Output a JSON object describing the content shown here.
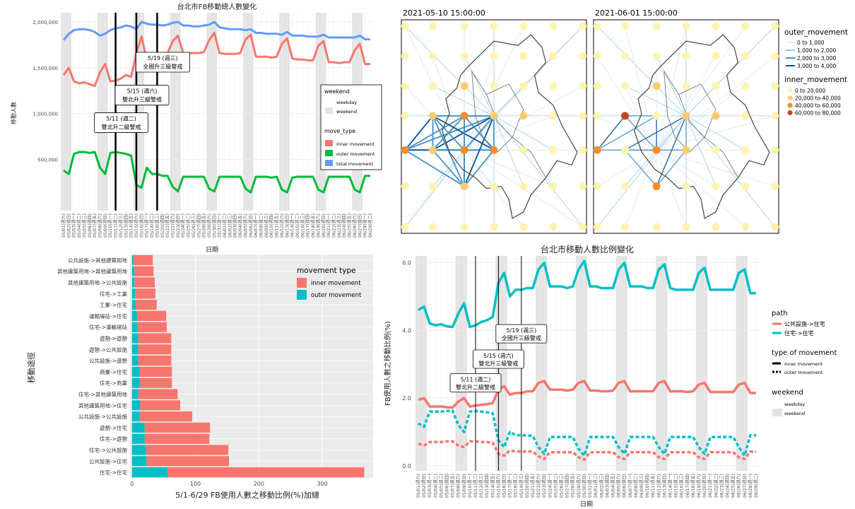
{
  "chart_data": [
    {
      "id": "p1",
      "type": "line",
      "title": "台北市FB移動總人數變化",
      "xlabel": "日期",
      "ylabel": "移動人數",
      "yticks": [
        "2,000,000",
        "1,500,000",
        "1,000,000",
        "500,000"
      ],
      "ytick_values": [
        2000000,
        1500000,
        1000000,
        500000
      ],
      "ylim": [
        -60000,
        2100000
      ],
      "date_labels": [
        "05/01(週六)",
        "05/02(週日)",
        "05/03(週一)",
        "05/04(週二)",
        "05/05(週三)",
        "05/06(週四)",
        "05/07(週五)",
        "05/08(週六)",
        "05/09(週日)",
        "05/10(週一)",
        "05/11(週二)",
        "05/12(週三)",
        "05/13(週四)",
        "05/14(週五)",
        "05/15(週六)",
        "05/16(週日)",
        "05/17(週一)",
        "05/18(週二)",
        "05/19(週三)",
        "05/20(週四)",
        "05/21(週五)",
        "05/22(週六)",
        "05/23(週日)",
        "05/24(週一)",
        "05/25(週二)",
        "05/26(週三)",
        "05/27(週四)",
        "05/28(週五)",
        "05/29(週六)",
        "05/30(週日)",
        "05/31(週一)",
        "06/01(週二)",
        "06/02(週三)",
        "06/03(週四)",
        "06/04(週五)",
        "06/05(週六)",
        "06/06(週日)",
        "06/07(週一)",
        "06/08(週二)",
        "06/09(週三)",
        "06/10(週四)",
        "06/11(週五)",
        "06/12(週六)",
        "06/13(週日)",
        "06/14(週一)",
        "06/15(週二)",
        "06/16(週三)",
        "06/17(週四)",
        "06/18(週五)",
        "06/19(週六)",
        "06/20(週日)",
        "06/21(週一)",
        "06/22(週二)",
        "06/23(週三)",
        "06/24(週四)",
        "06/25(週五)",
        "06/26(週六)",
        "06/27(週日)",
        "06/28(週一)",
        "06/29(週二)"
      ],
      "weekend_index": [
        0,
        1,
        7,
        8,
        14,
        15,
        21,
        22,
        28,
        29,
        35,
        36,
        42,
        43,
        49,
        50,
        56,
        57
      ],
      "event_lines": [
        10,
        14,
        18
      ],
      "annotations": [
        {
          "at": 10,
          "line1": "5/11 (週二)",
          "line2": "雙北升二級警戒",
          "y": 900000
        },
        {
          "at": 14,
          "line1": "5/15 (週六)",
          "line2": "雙北升三級警戒",
          "y": 1200000
        },
        {
          "at": 18,
          "line1": "5/19 (週三)",
          "line2": "全國升三級警戒",
          "y": 1560000
        }
      ],
      "legend": {
        "title_weekend": "weekend",
        "weekend_items": [
          "weekday",
          "weekend"
        ],
        "title_type": "move_type",
        "type_items": [
          "inner movement",
          "outer movement",
          "total movement"
        ]
      },
      "series": [
        {
          "name": "inner movement",
          "color": "#F8766D",
          "values": [
            1420000,
            1500000,
            1350000,
            1330000,
            1340000,
            1320000,
            1300000,
            1450000,
            1540000,
            1350000,
            1360000,
            1380000,
            1420000,
            1400000,
            1660000,
            1840000,
            1580000,
            1650000,
            1650000,
            1660000,
            1660000,
            1790000,
            1850000,
            1660000,
            1660000,
            1660000,
            1660000,
            1670000,
            1800000,
            1880000,
            1660000,
            1650000,
            1650000,
            1650000,
            1660000,
            1810000,
            1860000,
            1620000,
            1620000,
            1620000,
            1610000,
            1620000,
            1760000,
            1820000,
            1600000,
            1590000,
            1590000,
            1580000,
            1580000,
            1740000,
            1790000,
            1560000,
            1560000,
            1550000,
            1560000,
            1560000,
            1690000,
            1760000,
            1540000,
            1540000
          ]
        },
        {
          "name": "outer movement",
          "color": "#00BA38",
          "values": [
            380000,
            340000,
            560000,
            580000,
            580000,
            570000,
            580000,
            410000,
            340000,
            570000,
            580000,
            570000,
            560000,
            540000,
            220000,
            190000,
            410000,
            340000,
            340000,
            320000,
            320000,
            200000,
            150000,
            310000,
            310000,
            310000,
            310000,
            310000,
            180000,
            150000,
            310000,
            310000,
            310000,
            310000,
            310000,
            180000,
            140000,
            310000,
            310000,
            310000,
            300000,
            310000,
            170000,
            140000,
            300000,
            310000,
            310000,
            310000,
            310000,
            170000,
            140000,
            310000,
            310000,
            310000,
            310000,
            310000,
            170000,
            140000,
            320000,
            320000
          ]
        },
        {
          "name": "total movement",
          "color": "#619CFF",
          "values": [
            1800000,
            1870000,
            1910000,
            1920000,
            1920000,
            1910000,
            1890000,
            1850000,
            1870000,
            1910000,
            1930000,
            1940000,
            1960000,
            1950000,
            1920000,
            2000000,
            1980000,
            1970000,
            1970000,
            1960000,
            1970000,
            1990000,
            2000000,
            1960000,
            1960000,
            1950000,
            1950000,
            1960000,
            1970000,
            2000000,
            1940000,
            1930000,
            1920000,
            1920000,
            1920000,
            1910000,
            1920000,
            1880000,
            1880000,
            1870000,
            1870000,
            1870000,
            1860000,
            1890000,
            1850000,
            1850000,
            1850000,
            1840000,
            1840000,
            1840000,
            1860000,
            1830000,
            1830000,
            1830000,
            1830000,
            1830000,
            1830000,
            1850000,
            1810000,
            1810000
          ]
        }
      ]
    },
    {
      "id": "p2",
      "type": "network-map",
      "panels": [
        "2021-05-10 15:00:00",
        "2021-06-01 15:00:00"
      ],
      "legend": {
        "outer_title": "outer_movement",
        "outer_items": [
          "0 to 1,000",
          "1,000 to 2,000",
          "2,000 to 3,000",
          "3,000 to 4,000"
        ],
        "outer_colors": [
          "#DEEBF7",
          "#9ECAE1",
          "#4292C6",
          "#08519C"
        ],
        "inner_title": "inner_movement",
        "inner_items": [
          "0 to 20,000",
          "20,000 to 40,000",
          "40,000 to 60,000",
          "60,000 to 80,000"
        ],
        "inner_colors": [
          "#FFF3B0",
          "#FDCB6E",
          "#F28E2B",
          "#C8461A"
        ]
      }
    },
    {
      "id": "p3",
      "type": "bar",
      "orientation": "horizontal",
      "stacked": true,
      "xlabel": "5/1-6/29 FB使用人數之移動比例(%)加總",
      "ylabel": "移動途徑",
      "xticks": [
        0,
        100,
        200,
        300
      ],
      "xlim": [
        -3,
        380
      ],
      "legend_title": "movement type",
      "categories": [
        "公共設施->其他建築用地",
        "其他建築用地->其他建築用地",
        "其他建築用地->公共設施",
        "住宅->工業",
        "工業->住宅",
        "運輸場站->住宅",
        "住宅->運輸場站",
        "遊憩->遊憩",
        "遊憩->公共設施",
        "公共設施->遊憩",
        "商業->住宅",
        "住宅->商業",
        "住宅->其他建築用地",
        "其他建築用地->住宅",
        "公共設施->公共設施",
        "遊憩->住宅",
        "住宅->遊憩",
        "住宅->公共設施",
        "公共設施->住宅",
        "住宅->住宅"
      ],
      "series": [
        {
          "name": "inner movement",
          "color": "#F8766D",
          "values": [
            30,
            30,
            32,
            32,
            33,
            46,
            46,
            52,
            52,
            52,
            51,
            50,
            62,
            63,
            83,
            103,
            102,
            130,
            130,
            310
          ]
        },
        {
          "name": "outer movement",
          "color": "#00BFC4",
          "values": [
            3,
            4,
            4,
            5,
            6,
            8,
            9,
            10,
            10,
            10,
            12,
            13,
            10,
            13,
            12,
            20,
            20,
            22,
            23,
            56
          ]
        }
      ]
    },
    {
      "id": "p4",
      "type": "line",
      "title": "台北市移動人數比例變化",
      "xlabel": "日期",
      "ylabel": "FB使用人數之移動比例(%)",
      "yticks": [
        "0.0",
        "2.0",
        "4.0",
        "6.0"
      ],
      "ylim": [
        -0.15,
        6.2
      ],
      "annotations": [
        {
          "at": 10,
          "line1": "5/11 (週二)",
          "line2": "雙北升二級警戒",
          "y": 2.45
        },
        {
          "at": 14,
          "line1": "5/15 (週六)",
          "line2": "雙北升三級警戒",
          "y": 3.15
        },
        {
          "at": 18,
          "line1": "5/19 (週三)",
          "line2": "全國升三級警戒",
          "y": 3.9
        }
      ],
      "legend": {
        "path_title": "path",
        "path_items": [
          "公共設施->住宅",
          "住宅->住宅"
        ],
        "type_title": "type of movement",
        "type_items": [
          "inner movement",
          "outer movement"
        ],
        "weekend_title": "weekend",
        "weekend_items": [
          "weekday",
          "weekend"
        ]
      },
      "series": [
        {
          "name": "住宅->住宅 inner",
          "color": "#00BFC4",
          "dash": false,
          "values": [
            4.6,
            4.7,
            4.2,
            4.15,
            4.18,
            4.12,
            4.1,
            4.5,
            4.8,
            4.1,
            4.15,
            4.25,
            4.3,
            4.4,
            5.4,
            5.7,
            5.0,
            5.2,
            5.2,
            5.25,
            5.25,
            5.8,
            6.0,
            5.3,
            5.3,
            5.3,
            5.25,
            5.3,
            5.8,
            6.05,
            5.3,
            5.3,
            5.25,
            5.25,
            5.25,
            5.8,
            6.0,
            5.3,
            5.3,
            5.3,
            5.25,
            5.25,
            5.8,
            5.95,
            5.25,
            5.2,
            5.2,
            5.2,
            5.2,
            5.7,
            5.85,
            5.2,
            5.2,
            5.2,
            5.2,
            5.2,
            5.7,
            5.8,
            5.1,
            5.1
          ]
        },
        {
          "name": "公共設施->住宅 inner",
          "color": "#F8766D",
          "dash": false,
          "values": [
            1.95,
            2.0,
            1.75,
            1.75,
            1.75,
            1.73,
            1.72,
            1.9,
            2.0,
            1.75,
            1.78,
            1.8,
            1.82,
            1.85,
            2.25,
            2.35,
            2.1,
            2.15,
            2.15,
            2.2,
            2.2,
            2.45,
            2.5,
            2.25,
            2.25,
            2.25,
            2.22,
            2.25,
            2.45,
            2.5,
            2.22,
            2.22,
            2.2,
            2.2,
            2.22,
            2.45,
            2.5,
            2.2,
            2.2,
            2.2,
            2.2,
            2.2,
            2.45,
            2.5,
            2.2,
            2.2,
            2.2,
            2.18,
            2.2,
            2.4,
            2.45,
            2.18,
            2.18,
            2.18,
            2.18,
            2.18,
            2.4,
            2.45,
            2.15,
            2.15
          ]
        },
        {
          "name": "住宅->住宅 outer",
          "color": "#00BFC4",
          "dash": true,
          "values": [
            1.25,
            1.15,
            1.6,
            1.6,
            1.6,
            1.62,
            1.63,
            1.2,
            1.0,
            1.6,
            1.62,
            1.6,
            1.58,
            1.55,
            0.75,
            0.55,
            1.0,
            0.9,
            0.9,
            0.9,
            0.88,
            0.55,
            0.35,
            0.85,
            0.85,
            0.85,
            0.85,
            0.85,
            0.5,
            0.3,
            0.85,
            0.85,
            0.85,
            0.85,
            0.85,
            0.55,
            0.35,
            0.85,
            0.85,
            0.85,
            0.85,
            0.85,
            0.55,
            0.35,
            0.85,
            0.85,
            0.85,
            0.85,
            0.85,
            0.55,
            0.35,
            0.85,
            0.85,
            0.85,
            0.85,
            0.85,
            0.55,
            0.3,
            0.9,
            0.9
          ]
        },
        {
          "name": "公共設施->住宅 outer",
          "color": "#F8766D",
          "dash": true,
          "values": [
            0.65,
            0.6,
            0.7,
            0.7,
            0.7,
            0.72,
            0.72,
            0.6,
            0.55,
            0.72,
            0.72,
            0.7,
            0.7,
            0.68,
            0.35,
            0.3,
            0.45,
            0.42,
            0.42,
            0.42,
            0.42,
            0.28,
            0.2,
            0.4,
            0.4,
            0.4,
            0.4,
            0.4,
            0.25,
            0.18,
            0.4,
            0.4,
            0.4,
            0.4,
            0.4,
            0.25,
            0.2,
            0.4,
            0.4,
            0.4,
            0.4,
            0.4,
            0.25,
            0.2,
            0.4,
            0.4,
            0.4,
            0.4,
            0.4,
            0.25,
            0.2,
            0.4,
            0.4,
            0.4,
            0.4,
            0.4,
            0.25,
            0.2,
            0.42,
            0.42
          ]
        }
      ]
    }
  ]
}
